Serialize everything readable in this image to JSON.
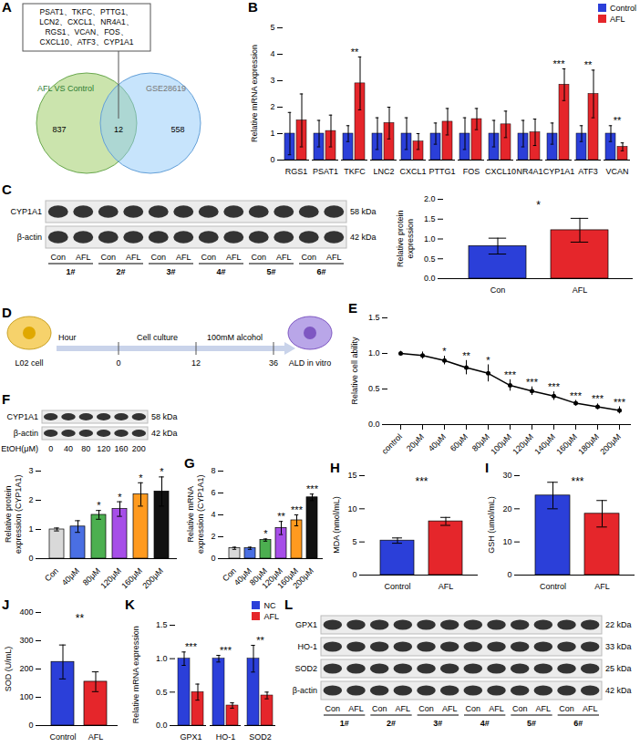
{
  "venn": {
    "panel": "A",
    "left_label": "AFL VS Control",
    "right_label": "GSE28619",
    "left_only": 837,
    "both": 12,
    "right_only": 558,
    "gene_lines": [
      "PSAT1、TKFC、PTTG1、",
      "LCN2、CXCL1、NR4A1、",
      "RGS1、VCAN、FOS、",
      "CXCL10、ATF3、CYP1A1"
    ]
  },
  "schematic": {
    "panel": "D",
    "start_label": "L02 cell",
    "end_label": "ALD in vitro",
    "axis_label": "Hour",
    "times": [
      0,
      12,
      36
    ],
    "phases": [
      "Cell culture",
      "100mM alcohol"
    ]
  },
  "blots": [
    {
      "panel": "C",
      "rows": [
        {
          "protein": "CYP1A1",
          "size": "58 kDa"
        },
        {
          "protein": "β-actin",
          "size": "42 kDa"
        }
      ],
      "lanes": [
        "Con",
        "AFL",
        "Con",
        "AFL",
        "Con",
        "AFL",
        "Con",
        "AFL",
        "Con",
        "AFL",
        "Con",
        "AFL"
      ],
      "samples": [
        "1#",
        "2#",
        "3#",
        "4#",
        "5#",
        "6#"
      ]
    },
    {
      "panel": "F",
      "rows": [
        {
          "protein": "CYP1A1",
          "size": "58 kDa"
        },
        {
          "protein": "β-actin",
          "size": "42 kDa"
        }
      ],
      "lane_title": "EtOH(μM)",
      "lanes": [
        "0",
        "40",
        "80",
        "120",
        "160",
        "200"
      ]
    },
    {
      "panel": "L",
      "rows": [
        {
          "protein": "GPX1",
          "size": "22 kDa"
        },
        {
          "protein": "HO-1",
          "size": "33 kDa"
        },
        {
          "protein": "SOD2",
          "size": "25 kDa"
        },
        {
          "protein": "β-actin",
          "size": "42 kDa"
        }
      ],
      "lanes": [
        "Con",
        "AFL",
        "Con",
        "AFL",
        "Con",
        "AFL",
        "Con",
        "AFL",
        "Con",
        "AFL",
        "Con",
        "AFL"
      ],
      "samples": [
        "1#",
        "2#",
        "3#",
        "4#",
        "5#",
        "6#"
      ]
    }
  ],
  "chart_data": [
    {
      "panel": "B",
      "type": "bar",
      "ylabel": "Relative mRNA expression",
      "categories": [
        "RGS1",
        "PSAT1",
        "TKFC",
        "LNC2",
        "CXCL1",
        "PTTG1",
        "FOS",
        "CXCL10",
        "NR4A1",
        "CYP1A1",
        "ATF3",
        "VCAN"
      ],
      "series": [
        {
          "name": "Control",
          "color": "#2b3fd9",
          "values": [
            1,
            1,
            1,
            1,
            1,
            1,
            1,
            1,
            1,
            1,
            1,
            1
          ],
          "errors": [
            0.8,
            0.5,
            0.3,
            0.6,
            0.6,
            0.4,
            0.6,
            0.5,
            0.5,
            0.4,
            0.3,
            0.3
          ]
        },
        {
          "name": "AFL",
          "color": "#e5262b",
          "values": [
            1.5,
            1.1,
            2.9,
            1.4,
            0.7,
            1.45,
            1.55,
            1.35,
            1.05,
            2.85,
            2.5,
            0.5
          ],
          "errors": [
            1.0,
            0.6,
            1.0,
            0.6,
            0.3,
            0.5,
            0.4,
            0.5,
            0.5,
            0.6,
            0.9,
            0.15
          ]
        }
      ],
      "significance": [
        null,
        null,
        "**",
        null,
        null,
        null,
        null,
        null,
        null,
        "***",
        "**",
        "**"
      ],
      "ylim": [
        0,
        5
      ],
      "yticks": [
        0,
        1,
        2,
        3,
        4,
        5
      ],
      "legend": "top-right"
    },
    {
      "panel": "C",
      "type": "bar",
      "ylabel": "Relative protein expression",
      "categories": [
        "Con",
        "AFL"
      ],
      "values": [
        0.82,
        1.22
      ],
      "errors": [
        0.2,
        0.3
      ],
      "colors": [
        "#2b3fd9",
        "#e5262b"
      ],
      "significance": "*",
      "ylim": [
        0,
        2
      ],
      "yticks": [
        {
          "value": 0,
          "label": "0.0"
        },
        0.5,
        {
          "value": 1,
          "label": "1.0"
        },
        1.5,
        {
          "value": 2,
          "label": "2.0"
        }
      ]
    },
    {
      "panel": "E",
      "type": "line",
      "ylabel": "Relative cell ability",
      "color": "#000000",
      "marker": "circle",
      "categories": [
        "control",
        "20μM",
        "40μM",
        "60μM",
        "80μM",
        "100μM",
        "120μM",
        "140μM",
        "160μM",
        "180μM",
        "200μM"
      ],
      "values": [
        1.0,
        0.97,
        0.9,
        0.8,
        0.72,
        0.55,
        0.47,
        0.4,
        0.3,
        0.25,
        0.2
      ],
      "errors": [
        0.03,
        0.05,
        0.06,
        0.1,
        0.12,
        0.08,
        0.06,
        0.06,
        0.04,
        0.04,
        0.05
      ],
      "significance": [
        null,
        null,
        "*",
        "**",
        "*",
        "***",
        "***",
        "***",
        "***",
        "***",
        "***"
      ],
      "ylim": [
        0,
        1.5
      ],
      "yticks": [
        {
          "value": 0,
          "label": "0.0"
        },
        0.5,
        {
          "value": 1,
          "label": "1.0"
        },
        1.5
      ]
    },
    {
      "panel": "F",
      "type": "bar",
      "ylabel": "Relative protein expression (CYP1A1)",
      "categories": [
        "Con",
        "40μM",
        "80μM",
        "120μM",
        "160μM",
        "200μM"
      ],
      "values": [
        1.0,
        1.1,
        1.5,
        1.7,
        2.2,
        2.3
      ],
      "errors": [
        0.05,
        0.2,
        0.15,
        0.25,
        0.4,
        0.5
      ],
      "colors": [
        "#d9d9d9",
        "#4a6fe3",
        "#4caf50",
        "#a64ee8",
        "#ff9a1f",
        "#111111"
      ],
      "significance": [
        null,
        null,
        "*",
        "*",
        "*",
        "*"
      ],
      "ylim": [
        0,
        3
      ],
      "yticks": [
        0,
        1,
        2,
        3
      ]
    },
    {
      "panel": "G",
      "type": "bar",
      "ylabel": "Relative mRNA expression (CYP1A1)",
      "categories": [
        "Con",
        "40μM",
        "80μM",
        "120μM",
        "160μM",
        "200μM"
      ],
      "values": [
        0.95,
        0.95,
        1.7,
        2.8,
        3.5,
        5.6
      ],
      "errors": [
        0.1,
        0.1,
        0.1,
        0.6,
        0.5,
        0.3
      ],
      "colors": [
        "#d9d9d9",
        "#4a6fe3",
        "#4caf50",
        "#a64ee8",
        "#ff9a1f",
        "#111111"
      ],
      "significance": [
        null,
        null,
        "*",
        "**",
        "***",
        "***"
      ],
      "ylim": [
        0,
        8
      ],
      "yticks": [
        0,
        2,
        4,
        6,
        8
      ]
    },
    {
      "panel": "H",
      "type": "bar",
      "ylabel": "MDA (nmol/mL)",
      "categories": [
        "Control",
        "AFL"
      ],
      "values": [
        5.2,
        8.1
      ],
      "errors": [
        0.4,
        0.6
      ],
      "colors": [
        "#2b3fd9",
        "#e5262b"
      ],
      "significance": "***",
      "ylim": [
        0,
        15
      ],
      "yticks": [
        0,
        5,
        10,
        15
      ]
    },
    {
      "panel": "I",
      "type": "bar",
      "ylabel": "GSH (umol/mL)",
      "categories": [
        "Control",
        "AFL"
      ],
      "values": [
        24,
        18.5
      ],
      "errors": [
        4,
        4
      ],
      "colors": [
        "#2b3fd9",
        "#e5262b"
      ],
      "significance": "***",
      "ylim": [
        0,
        30
      ],
      "yticks": [
        0,
        10,
        20,
        30
      ]
    },
    {
      "panel": "J",
      "type": "bar",
      "ylabel": "SOD (U/mL)",
      "categories": [
        "Control",
        "AFL"
      ],
      "values": [
        225,
        155
      ],
      "errors": [
        60,
        35
      ],
      "colors": [
        "#2b3fd9",
        "#e5262b"
      ],
      "significance": "**",
      "ylim": [
        0,
        400
      ],
      "yticks": [
        0,
        100,
        200,
        300,
        400
      ]
    },
    {
      "panel": "K",
      "type": "bar",
      "ylabel": "Relative mRNA expression",
      "categories": [
        "GPX1",
        "HO-1",
        "SOD2"
      ],
      "series": [
        {
          "name": "NC",
          "color": "#2b3fd9",
          "values": [
            1.0,
            1.0,
            1.0
          ],
          "errors": [
            0.1,
            0.05,
            0.2
          ]
        },
        {
          "name": "AFL",
          "color": "#e5262b",
          "values": [
            0.5,
            0.3,
            0.45
          ],
          "errors": [
            0.12,
            0.04,
            0.05
          ]
        }
      ],
      "significance": [
        "***",
        "***",
        "**"
      ],
      "ylim": [
        0,
        1.5
      ],
      "yticks": [
        {
          "value": 0,
          "label": "0.0"
        },
        0.5,
        {
          "value": 1,
          "label": "1.0"
        },
        1.5
      ],
      "legend": "top-right"
    }
  ]
}
